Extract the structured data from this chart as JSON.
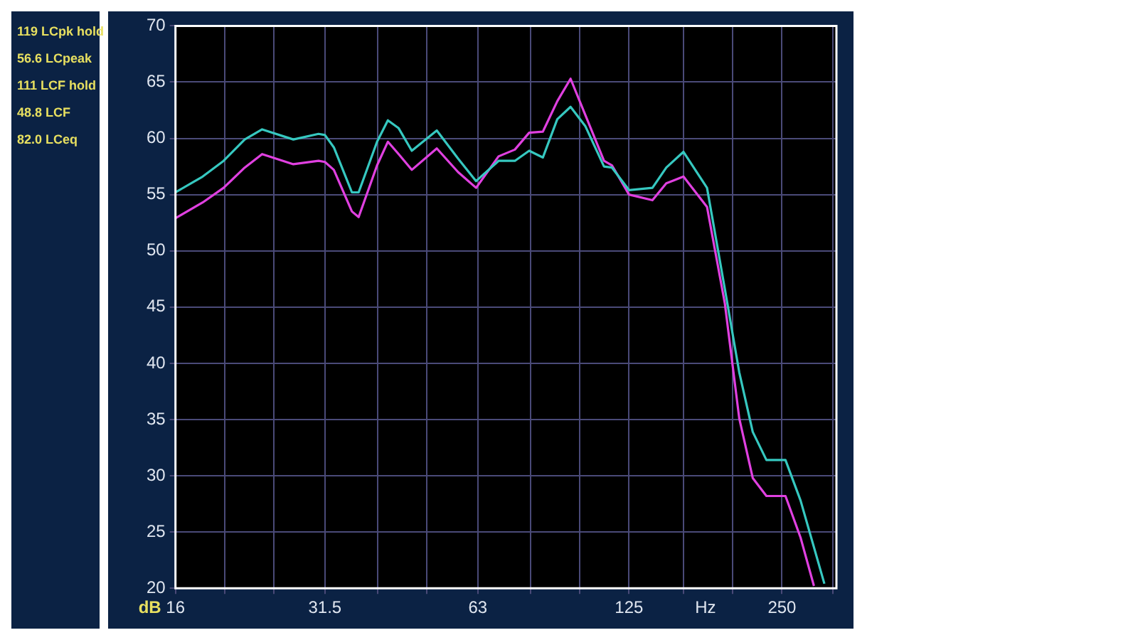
{
  "chart_data": {
    "type": "line",
    "xlabel": "Hz",
    "ylabel": "dB",
    "log": "x",
    "grid": true,
    "legend": false,
    "marker": "none",
    "line_style": "solid",
    "annotations": [
      "119 LCpk hold",
      "56.6 LCpeak",
      "111 LCF hold",
      "48.8 LCF",
      "82.0 LCeq"
    ],
    "xlim": [
      16,
      320
    ],
    "xticks": [
      16,
      {
        "value": 20,
        "label": null
      },
      {
        "value": 25,
        "label": null
      },
      31.5,
      {
        "value": 40,
        "label": null
      },
      {
        "value": 50,
        "label": null
      },
      63,
      {
        "value": 80,
        "label": null
      },
      {
        "value": 100,
        "label": null
      },
      125,
      {
        "value": 160,
        "label": null
      },
      {
        "value": 200,
        "label": null
      },
      250,
      {
        "value": 315,
        "label": null
      }
    ],
    "ylim": [
      20,
      70
    ],
    "yticks": [
      20,
      25,
      30,
      35,
      40,
      45,
      50,
      55,
      60,
      65,
      70
    ],
    "series": [
      {
        "color": "#36c8c0",
        "x": [
          16,
          18.1,
          19.9,
          21.9,
          23.7,
          27.3,
          30.6,
          31.5,
          32.8,
          35.6,
          36.7,
          39.9,
          41.9,
          44,
          46.7,
          52.3,
          57.6,
          62.5,
          69.2,
          74.5,
          79.5,
          84.6,
          90.3,
          95.9,
          102.5,
          111.6,
          115.7,
          125,
          139,
          148,
          160,
          178,
          193,
          206,
          219,
          233,
          254,
          272,
          303
        ],
        "values": [
          55.2,
          56.6,
          58,
          59.9,
          60.8,
          59.9,
          60.4,
          60.3,
          59.2,
          55.2,
          55.2,
          59.7,
          61.6,
          60.9,
          58.9,
          60.7,
          58.2,
          56.2,
          58,
          58,
          58.9,
          58.3,
          61.7,
          62.8,
          61.1,
          57.5,
          57.4,
          55.4,
          55.6,
          57.4,
          58.8,
          55.6,
          46.6,
          39.2,
          33.9,
          31.4,
          31.4,
          27.8,
          20.4
        ]
      },
      {
        "color": "#e040e0",
        "x": [
          16,
          18.1,
          19.9,
          21.9,
          23.7,
          27.3,
          30.6,
          31.5,
          32.8,
          35.6,
          36.7,
          39.9,
          41.9,
          44,
          46.7,
          52.3,
          57.6,
          62.5,
          69.2,
          74.5,
          79.5,
          84.6,
          90.3,
          95.9,
          102.5,
          111.6,
          115.7,
          125,
          139,
          148,
          160,
          178,
          193,
          206,
          219,
          233,
          254,
          272,
          289
        ],
        "values": [
          52.9,
          54.3,
          55.6,
          57.4,
          58.6,
          57.7,
          58,
          57.9,
          57.2,
          53.5,
          53,
          57.6,
          59.7,
          58.6,
          57.2,
          59.1,
          57,
          55.6,
          58.4,
          59,
          60.5,
          60.6,
          63.3,
          65.3,
          62.1,
          58,
          57.6,
          55,
          54.5,
          56,
          56.6,
          53.9,
          45.3,
          35.1,
          29.8,
          28.2,
          28.2,
          24.5,
          20.2
        ]
      }
    ]
  }
}
